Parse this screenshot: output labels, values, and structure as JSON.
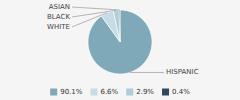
{
  "chart_data": {
    "type": "pie",
    "categories": [
      "90.1%",
      "6.6%",
      "2.9%",
      "0.4%"
    ],
    "values": [
      90.1,
      6.6,
      2.9,
      0.4
    ],
    "colors": [
      "#7fa8b8",
      "#c8dce6",
      "#b0ccd8",
      "#2e4a5e"
    ],
    "annotations": [
      "HISPANIC",
      "WHITE",
      "BLACK",
      "ASIAN"
    ],
    "legend": "bottom"
  }
}
